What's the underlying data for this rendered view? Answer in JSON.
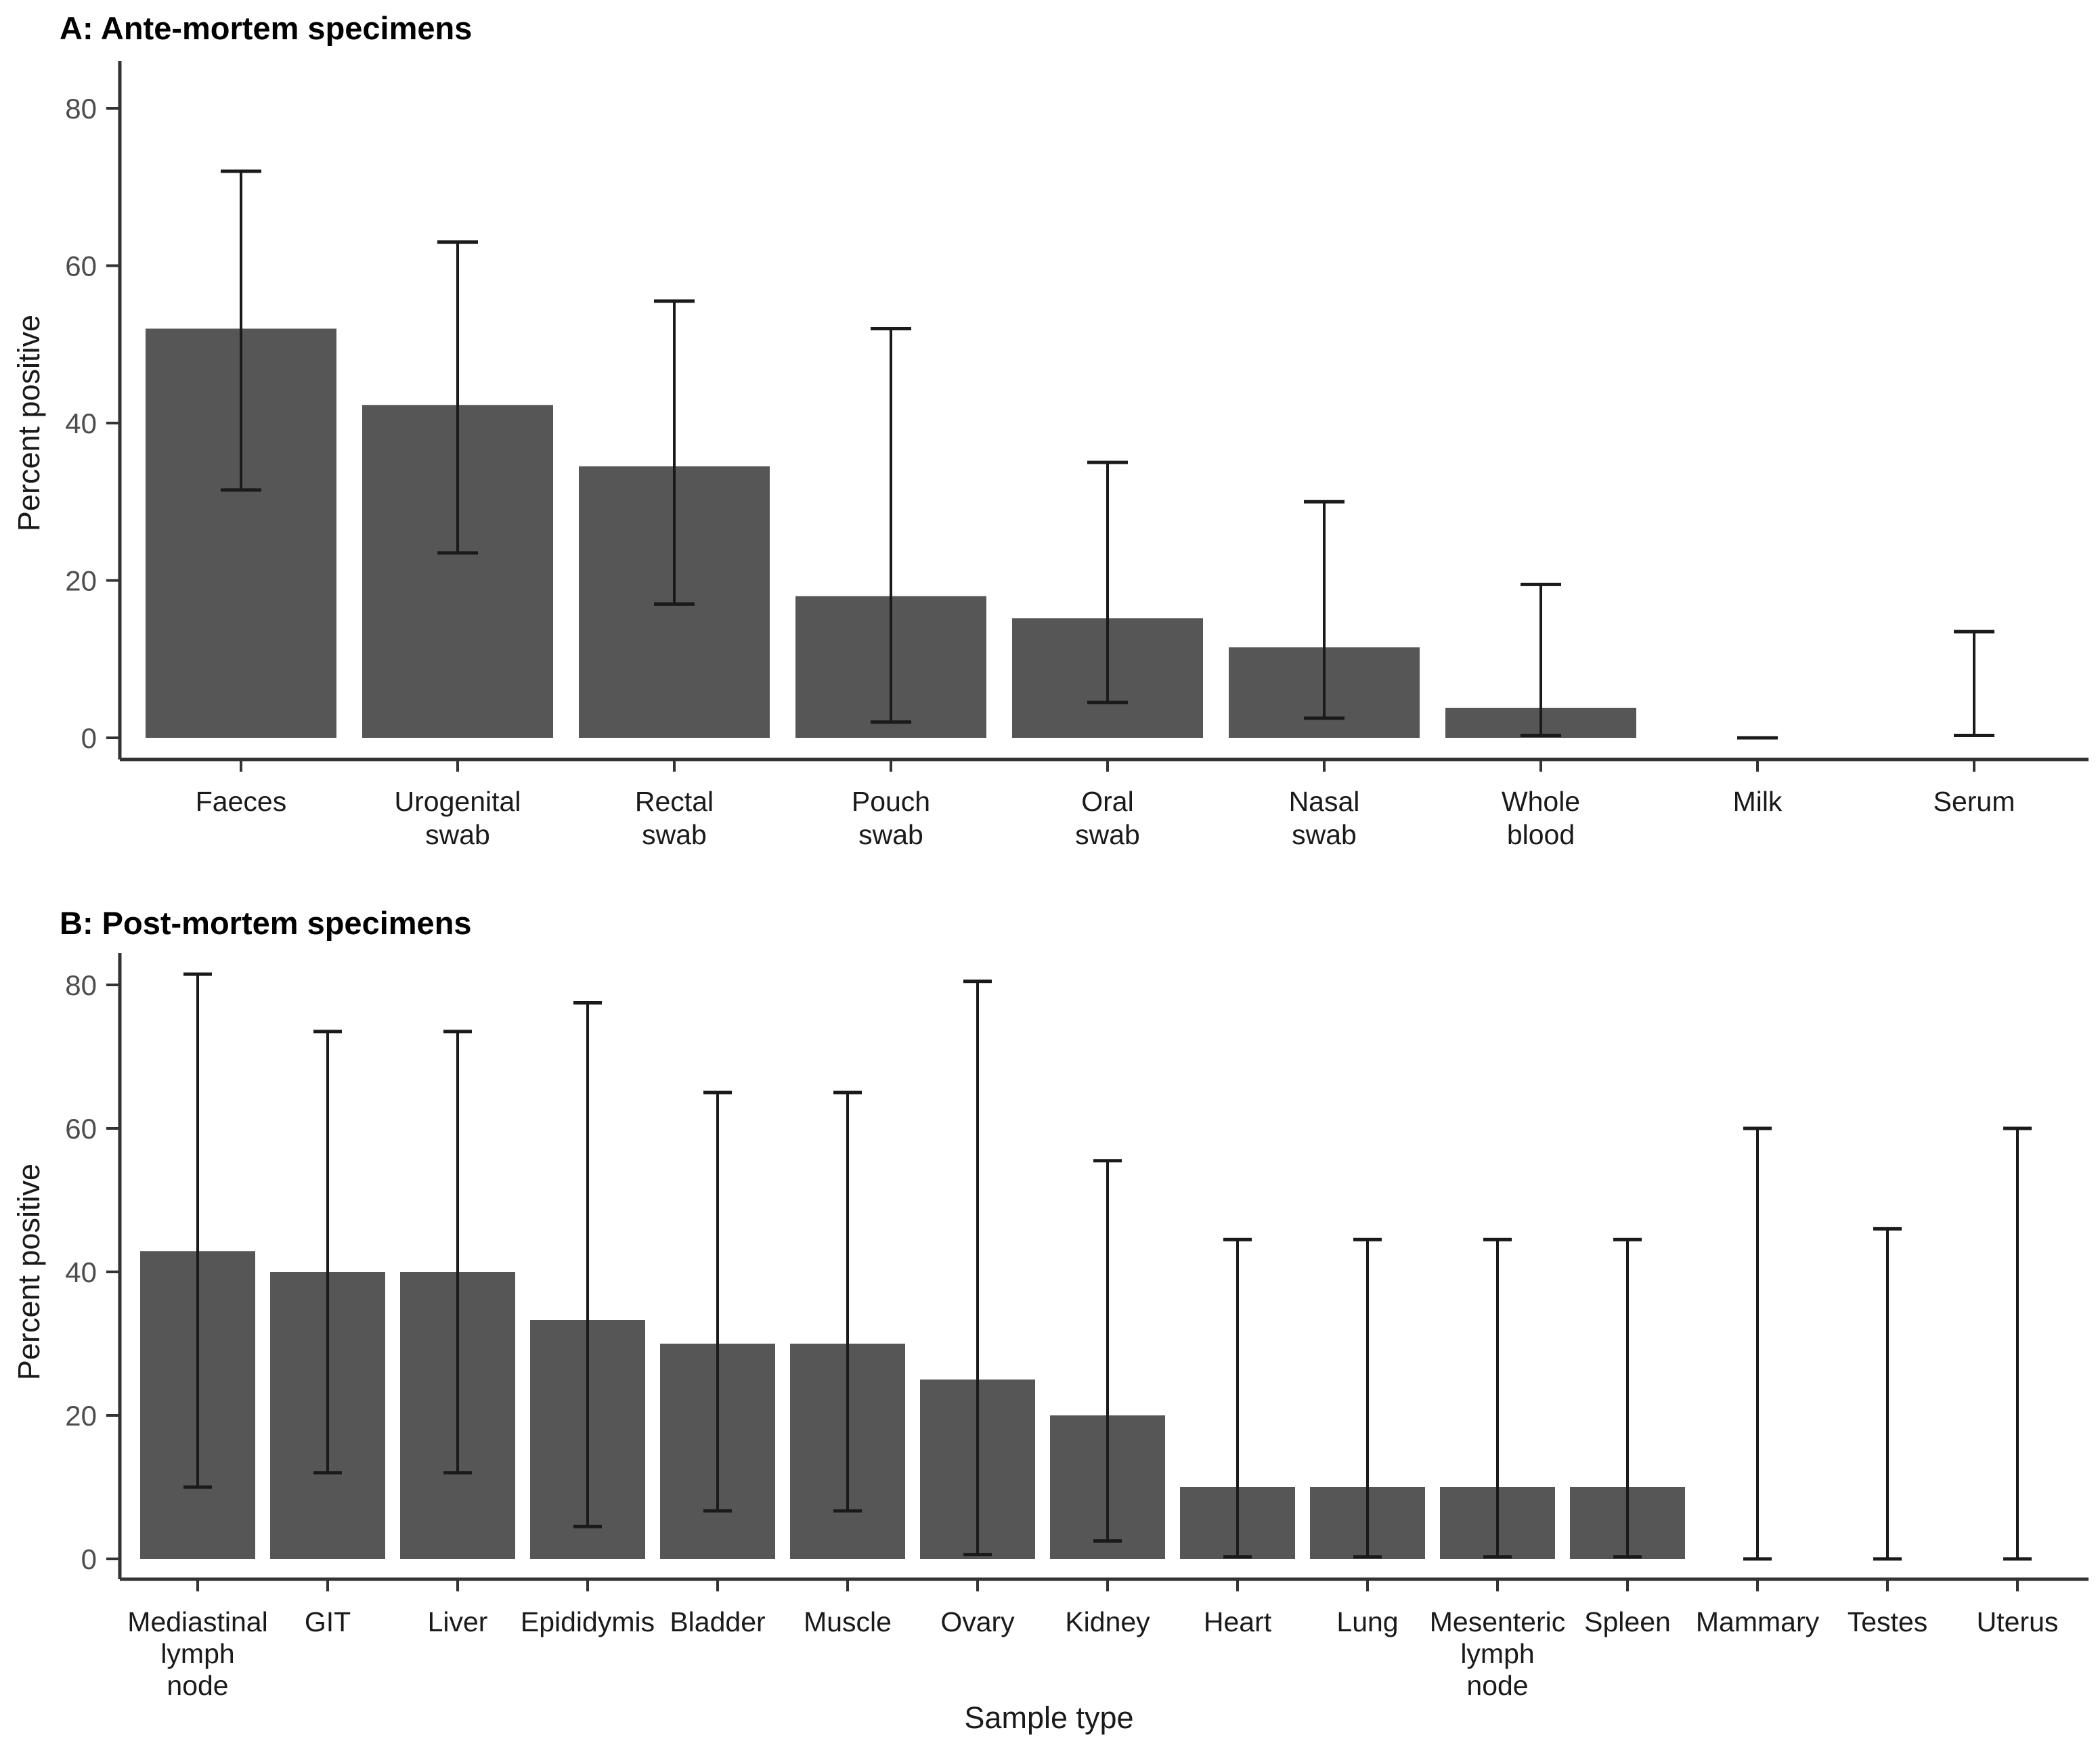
{
  "figure": {
    "background": "#ffffff",
    "x_axis_title": "Sample type",
    "y_axis_title": "Percent positive",
    "colors": {
      "bar_fill": "#565656",
      "error_bar": "#1a1a1a",
      "axis": "#333333",
      "tick_label": "#4d4d4d",
      "category_label": "#1a1a1a"
    }
  },
  "chart_data": [
    {
      "type": "bar",
      "panel": "A",
      "title": "A: Ante-mortem specimens",
      "ylabel": "Percent positive",
      "xlabel": "",
      "ylim": [
        0,
        87
      ],
      "yticks": [
        0,
        20,
        40,
        60,
        80
      ],
      "grid": "off",
      "legend": "none",
      "categories": [
        "Faeces",
        "Urogenital\nswab",
        "Rectal\nswab",
        "Pouch\nswab",
        "Oral\nswab",
        "Nasal\nswab",
        "Whole\nblood",
        "Milk",
        "Serum"
      ],
      "values": [
        52,
        42.3,
        34.5,
        18,
        15.2,
        11.5,
        3.8,
        0,
        0
      ],
      "error_low": [
        31.5,
        23.5,
        17,
        2,
        4.5,
        2.5,
        0.3,
        0,
        0.3
      ],
      "error_high": [
        72,
        63,
        55.5,
        52,
        35,
        30,
        19.5,
        0,
        13.5
      ]
    },
    {
      "type": "bar",
      "panel": "B",
      "title": "B: Post-mortem specimens",
      "ylabel": "Percent positive",
      "xlabel": "Sample type",
      "ylim": [
        0,
        87
      ],
      "yticks": [
        0,
        20,
        40,
        60,
        80
      ],
      "grid": "off",
      "legend": "none",
      "categories": [
        "Mediastinal\nlymph\nnode",
        "GIT",
        "Liver",
        "Epididymis",
        "Bladder",
        "Muscle",
        "Ovary",
        "Kidney",
        "Heart",
        "Lung",
        "Mesenteric\nlymph\nnode",
        "Spleen",
        "Mammary",
        "Testes",
        "Uterus"
      ],
      "values": [
        42.9,
        40,
        40,
        33.3,
        30,
        30,
        25,
        20,
        10,
        10,
        10,
        10,
        0,
        0,
        0
      ],
      "error_low": [
        10,
        12,
        12,
        4.5,
        6.7,
        6.7,
        0.6,
        2.5,
        0.3,
        0.3,
        0.3,
        0.3,
        0,
        0,
        0
      ],
      "error_high": [
        81.5,
        73.5,
        73.5,
        77.5,
        65,
        65,
        80.5,
        55.5,
        44.5,
        44.5,
        44.5,
        44.5,
        60,
        46,
        60
      ]
    }
  ]
}
